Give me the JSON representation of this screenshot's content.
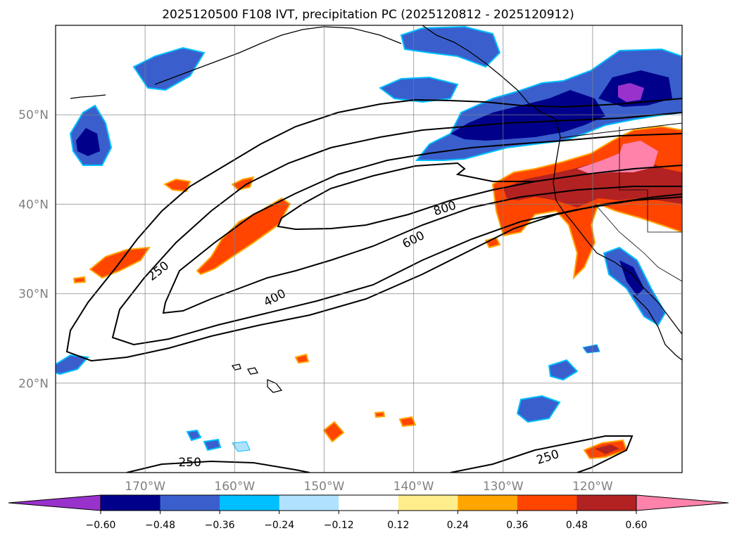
{
  "title": "2025120500 F108 IVT, precipitation PC (2025120812 - 2025120912)",
  "map": {
    "lon_range": [
      -180,
      -110
    ],
    "lat_range": [
      10,
      60
    ],
    "lat_ticks": [
      {
        "value": 50,
        "label": "50°N"
      },
      {
        "value": 40,
        "label": "40°N"
      },
      {
        "value": 30,
        "label": "30°N"
      },
      {
        "value": 20,
        "label": "20°N"
      }
    ],
    "lon_ticks": [
      {
        "value": -170,
        "label": "170°W"
      },
      {
        "value": -160,
        "label": "160°W"
      },
      {
        "value": -150,
        "label": "150°W"
      },
      {
        "value": -140,
        "label": "140°W"
      },
      {
        "value": -130,
        "label": "130°W"
      },
      {
        "value": -120,
        "label": "120°W"
      }
    ],
    "grid": true,
    "contour_labels": [
      {
        "text": "250",
        "lon": -168.5,
        "lat": 32.5,
        "rotate": -38
      },
      {
        "text": "400",
        "lon": -155.5,
        "lat": 29.5,
        "rotate": -28
      },
      {
        "text": "600",
        "lon": -140,
        "lat": 36,
        "rotate": -27
      },
      {
        "text": "800",
        "lon": -136.5,
        "lat": 39.5,
        "rotate": -18
      },
      {
        "text": "250",
        "lon": -165,
        "lat": 11.1,
        "rotate": 0
      },
      {
        "text": "250",
        "lon": -125,
        "lat": 11.7,
        "rotate": -18
      }
    ]
  },
  "colorbar": {
    "tick_labels": [
      "−0.60",
      "−0.48",
      "−0.36",
      "−0.24",
      "−0.12",
      "0.12",
      "0.24",
      "0.36",
      "0.48",
      "0.60"
    ],
    "colors": {
      "under": "#9932cc",
      "bins": [
        "#00008b",
        "#3a5fcd",
        "#00bfff",
        "#b0e2ff",
        "#ffffff",
        "#ffec8b",
        "#ffa500",
        "#ff4500",
        "#b22222"
      ],
      "over": "#ff82ab"
    }
  }
}
